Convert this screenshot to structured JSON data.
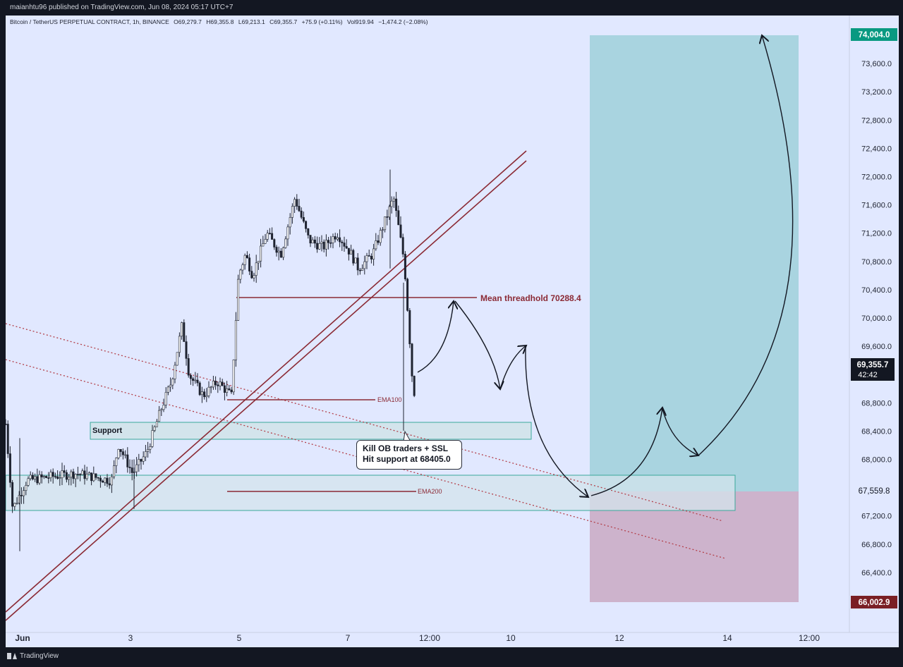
{
  "header": {
    "publish_text": "maianhtu96 published on TradingView.com, Jun 08, 2024 05:17 UTC+7"
  },
  "legend": {
    "symbol": "Bitcoin / TetherUS PERPETUAL CONTRACT, 1h, BINANCE",
    "open": "O69,279.7",
    "high": "H69,355.8",
    "low": "L69,213.1",
    "close": "C69,355.7",
    "change": "+75.9 (+0.11%)",
    "volume": "Vol919.94",
    "vol_change": "−1,474.2 (−2.08%)"
  },
  "price_axis": {
    "ticks": [
      "73,600.0",
      "73,200.0",
      "72,800.0",
      "72,400.0",
      "72,000.0",
      "71,600.0",
      "71,200.0",
      "70,800.0",
      "70,400.0",
      "70,000.0",
      "69,600.0",
      "68,800.0",
      "68,400.0",
      "68,000.0",
      "67,200.0",
      "66,800.0",
      "66,400.0"
    ],
    "target_label": "74,004.0",
    "current_price": "69,355.7",
    "countdown": "42:42",
    "entry_label": "67,559.8",
    "stop_label": "66,002.9"
  },
  "time_axis": {
    "ticks": [
      "Jun",
      "3",
      "5",
      "7",
      "12:00",
      "10",
      "12",
      "14",
      "12:00"
    ]
  },
  "annotations": {
    "support_label": "Support",
    "mean_threshold": "Mean threadhold 70288.4",
    "ema100": "EMA100",
    "ema200": "EMA200",
    "note_line1": "Kill OB traders + SSL",
    "note_line2": "Hit support at 68405.0"
  },
  "colors": {
    "background": "#e1e8ff",
    "target_zone": "#a9d4e0",
    "stop_zone": "#cdb3cc",
    "target_badge": "#089981",
    "stop_badge": "#7a1f24",
    "trendline": "#8b2a35",
    "support_zone": "#d3e4ec",
    "support_border": "#3aa89a"
  },
  "footer": {
    "brand": "TradingView"
  },
  "chart_data": {
    "type": "candlestick",
    "title": "Bitcoin / TetherUS PERPETUAL CONTRACT, 1h, BINANCE",
    "ylim": [
      65800,
      74100
    ],
    "current_price": 69355.7,
    "levels": {
      "target": 74004.0,
      "entry": 67559.8,
      "stop": 66002.9,
      "mean_threshold": 70288.4,
      "support_hit": 68405.0
    },
    "close_path": [
      [
        0,
        68500
      ],
      [
        10,
        67300
      ],
      [
        30,
        67700
      ],
      [
        60,
        67750
      ],
      [
        100,
        67800
      ],
      [
        150,
        67700
      ],
      [
        160,
        68200
      ],
      [
        180,
        67800
      ],
      [
        200,
        68100
      ],
      [
        220,
        68700
      ],
      [
        235,
        69100
      ],
      [
        250,
        69900
      ],
      [
        260,
        69200
      ],
      [
        280,
        68900
      ],
      [
        300,
        69100
      ],
      [
        320,
        68900
      ],
      [
        330,
        70600
      ],
      [
        340,
        70900
      ],
      [
        350,
        70600
      ],
      [
        370,
        71200
      ],
      [
        390,
        70900
      ],
      [
        410,
        71700
      ],
      [
        430,
        71100
      ],
      [
        450,
        71000
      ],
      [
        470,
        71200
      ],
      [
        490,
        70900
      ],
      [
        500,
        70700
      ],
      [
        520,
        70900
      ],
      [
        535,
        71300
      ],
      [
        550,
        71700
      ],
      [
        565,
        70800
      ],
      [
        572,
        69800
      ],
      [
        578,
        68900
      ],
      [
        590,
        69355.7
      ]
    ]
  }
}
